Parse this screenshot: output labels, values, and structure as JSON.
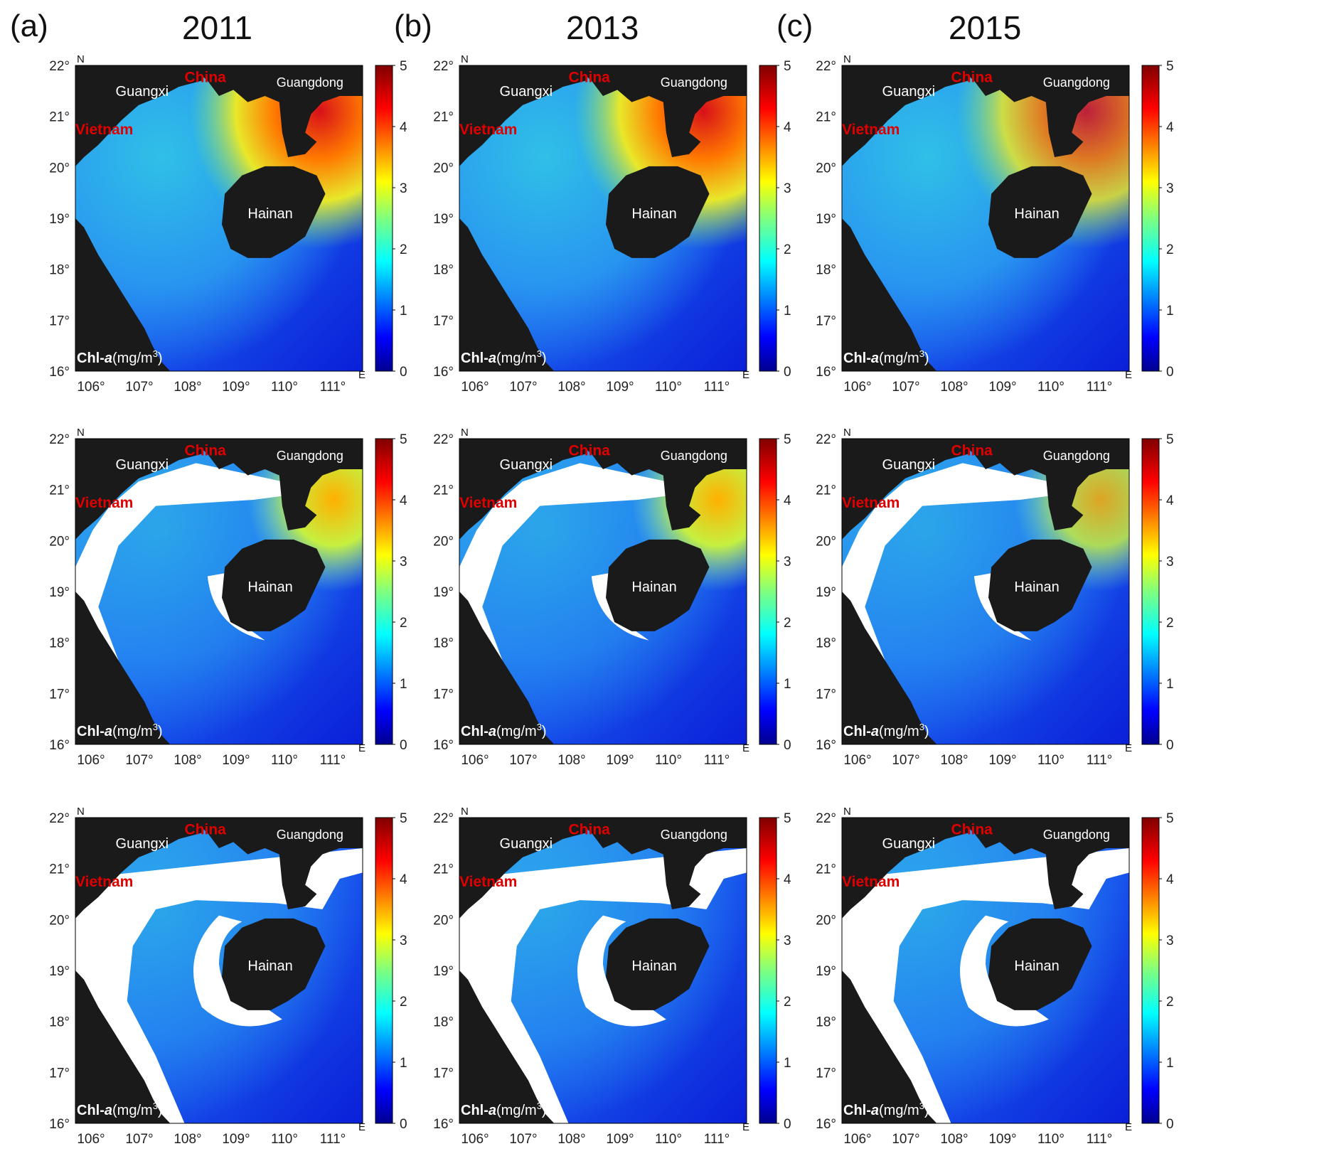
{
  "figure": {
    "columns": [
      {
        "label": "(a)",
        "year": "2011"
      },
      {
        "label": "(b)",
        "year": "2013"
      },
      {
        "label": "(c)",
        "year": "2015"
      }
    ],
    "rows": 3,
    "lat_ticks": [
      "22°",
      "21°",
      "20°",
      "19°",
      "18°",
      "17°",
      "16°"
    ],
    "lon_ticks": [
      "106°",
      "107°",
      "108°",
      "109°",
      "110°",
      "111°"
    ],
    "colorbar": {
      "ticks": [
        "5",
        "4",
        "3",
        "2",
        "1",
        "0"
      ],
      "range": [
        0,
        5
      ],
      "colormap": "jet"
    },
    "map_labels": {
      "north": "N",
      "east": "E",
      "china": "China",
      "guangxi": "Guangxi",
      "guangdong": "Guangdong",
      "vietnam": "Vietnam",
      "hainan": "Hainan",
      "unit_prefix": "Chl-",
      "unit_var": "a",
      "unit_suffix": "(mg/m",
      "unit_sup": "3",
      "unit_close": ")"
    },
    "colors": {
      "land": "#1a1a1a",
      "country_label": "#e00000",
      "masked": "#ffffff"
    }
  }
}
